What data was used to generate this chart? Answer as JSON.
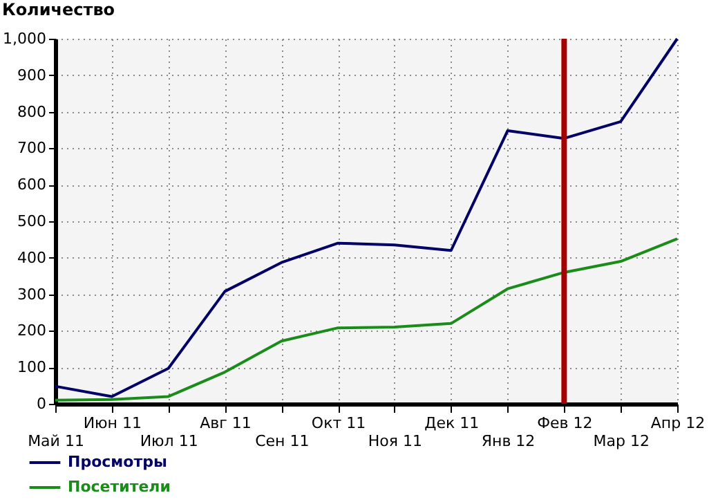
{
  "chart_data": {
    "type": "line",
    "title": "Количество",
    "categories": [
      "Май 11",
      "Июн 11",
      "Июл 11",
      "Авг 11",
      "Сен 11",
      "Окт 11",
      "Ноя 11",
      "Дек 11",
      "Янв 12",
      "Фев 12",
      "Мар 12",
      "Апр 12"
    ],
    "series": [
      {
        "name": "Просмотры",
        "color": "#000066",
        "values": [
          48,
          20,
          97,
          308,
          387,
          440,
          435,
          420,
          748,
          727,
          773,
          1000
        ]
      },
      {
        "name": "Посетители",
        "color": "#1a8c1a",
        "values": [
          10,
          12,
          20,
          87,
          172,
          208,
          210,
          220,
          315,
          360,
          390,
          452
        ]
      }
    ],
    "ylim": [
      0,
      1000
    ],
    "yticks": [
      0,
      100,
      200,
      300,
      400,
      500,
      600,
      700,
      800,
      900,
      {
        "value": 1000,
        "label": "1,000"
      }
    ],
    "ref_lines": [
      {
        "axis": "x",
        "value": "Фев 12",
        "color": "#a50000"
      }
    ],
    "grid": true,
    "legend": "bottom left",
    "marker": "none",
    "line_style": "solid"
  }
}
